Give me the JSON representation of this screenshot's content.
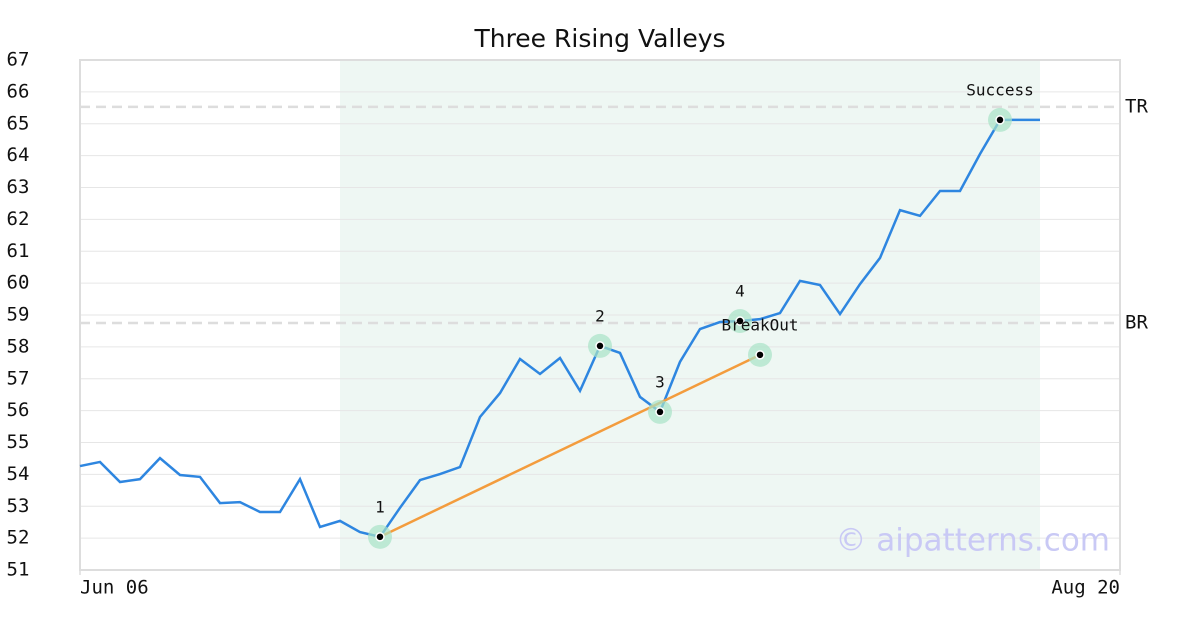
{
  "chart_data": {
    "type": "line",
    "title": "Three Rising Valleys",
    "x": [
      0,
      1,
      2,
      3,
      4,
      5,
      6,
      7,
      8,
      9,
      10,
      11,
      12,
      13,
      14,
      15,
      16,
      17,
      18,
      19,
      20,
      21,
      22,
      23,
      24,
      25,
      26,
      27,
      28,
      29,
      30,
      31,
      32,
      33,
      34,
      35,
      36,
      37,
      38,
      39,
      40,
      41,
      42,
      43,
      44,
      45,
      46,
      47,
      48
    ],
    "values": [
      54.26,
      54.39,
      53.76,
      53.85,
      54.51,
      53.98,
      53.92,
      53.1,
      53.13,
      52.82,
      52.82,
      53.85,
      52.35,
      52.54,
      52.19,
      52.04,
      52.95,
      53.82,
      54.01,
      54.23,
      55.8,
      56.55,
      57.62,
      57.15,
      57.65,
      56.62,
      58.03,
      57.81,
      56.43,
      55.96,
      57.53,
      58.56,
      58.78,
      58.81,
      58.87,
      59.06,
      60.07,
      59.94,
      59.03,
      59.97,
      60.79,
      62.29,
      62.11,
      62.89,
      62.89,
      64.05,
      65.12,
      65.12,
      65.12
    ],
    "color": "#2e86e0",
    "xlim": [
      0,
      52
    ],
    "xticks": [
      {
        "value": 0,
        "label": "Jun 06"
      },
      {
        "value": 52,
        "label": "Aug 20"
      }
    ],
    "ylim": [
      51,
      67
    ],
    "yticks": [
      51,
      52,
      53,
      54,
      55,
      56,
      57,
      58,
      59,
      60,
      61,
      62,
      63,
      64,
      65,
      66,
      67
    ],
    "grid": true,
    "highlight_range": [
      13,
      48
    ],
    "highlight_color": "#eef7f3",
    "levels": [
      {
        "label": "TR",
        "value": 65.53
      },
      {
        "label": "BR",
        "value": 58.75
      }
    ],
    "trendline": {
      "color": "#f39c3d",
      "x": [
        15,
        34
      ],
      "y": [
        52.04,
        57.75
      ]
    },
    "points": [
      {
        "label": "1",
        "x": 15,
        "y": 52.04
      },
      {
        "label": "2",
        "x": 26,
        "y": 58.03
      },
      {
        "label": "3",
        "x": 29,
        "y": 55.96
      },
      {
        "label": "4",
        "x": 33,
        "y": 58.81
      },
      {
        "label": "BreakOut",
        "x": 34,
        "y": 57.75
      },
      {
        "label": "Success",
        "x": 46,
        "y": 65.12
      }
    ],
    "watermark": "© aipatterns.com"
  }
}
